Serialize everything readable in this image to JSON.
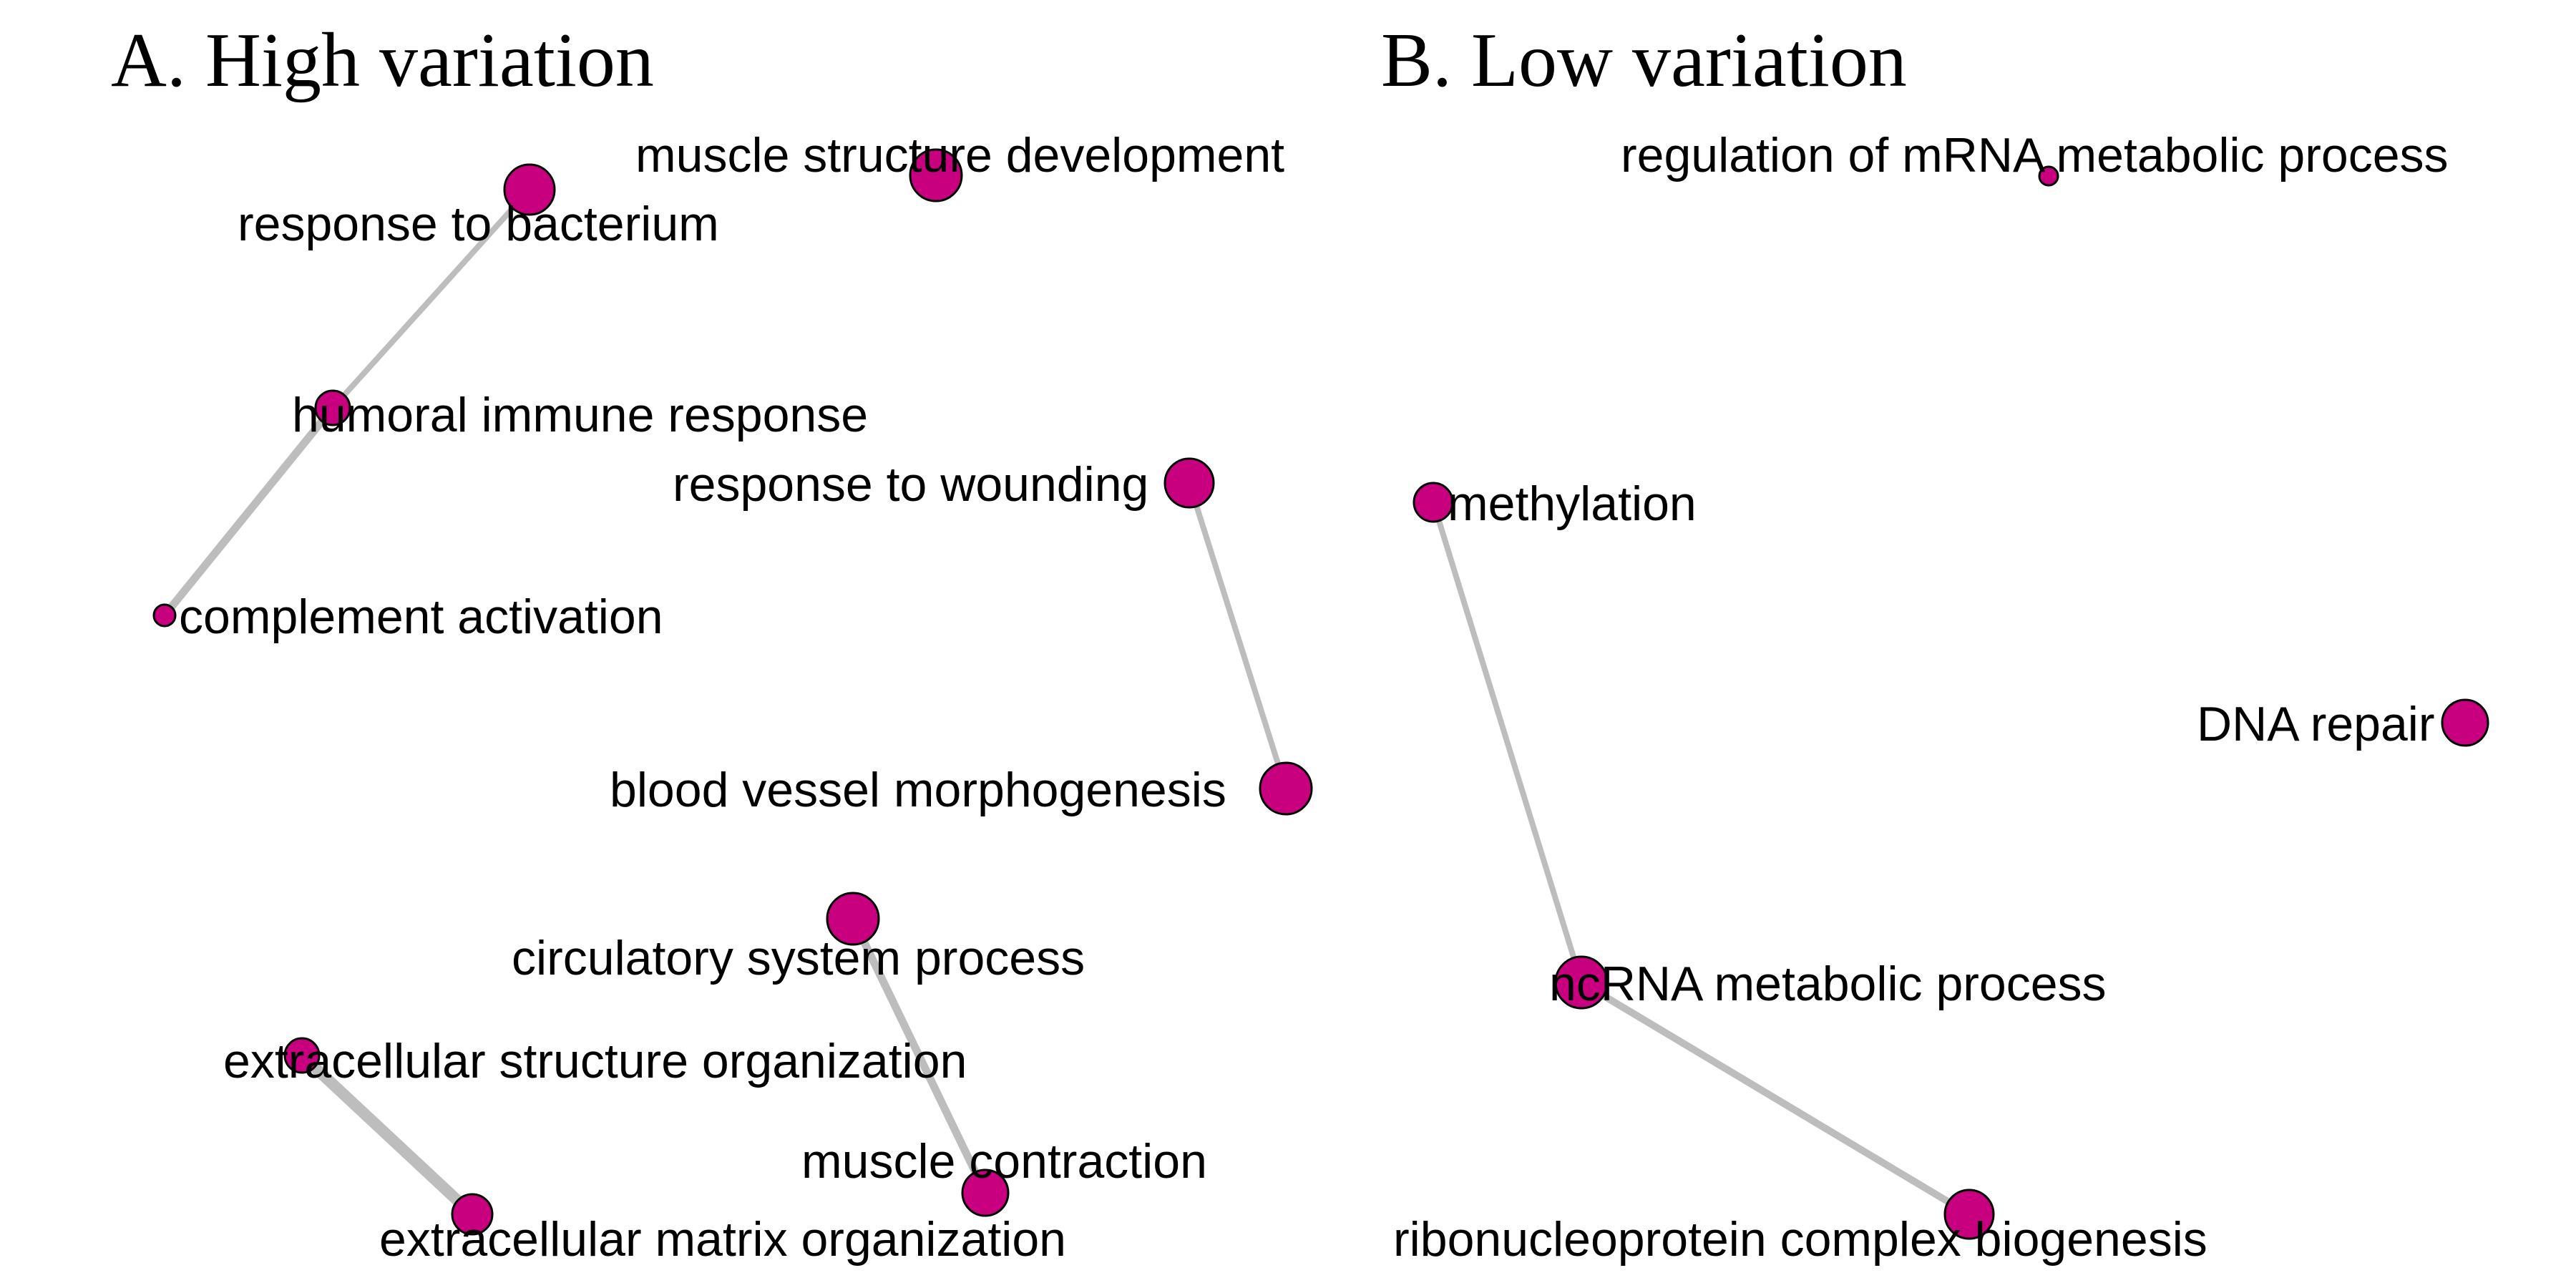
{
  "node_color": "#c8007f",
  "edge_color": "#bdbdbd",
  "panels": [
    {
      "title": "A. High variation",
      "nodes": [
        {
          "id": "muscle-structure-development",
          "label": "muscle structure development"
        },
        {
          "id": "response-to-bacterium",
          "label": "response to bacterium"
        },
        {
          "id": "humoral-immune-response",
          "label": "humoral immune response"
        },
        {
          "id": "response-to-wounding",
          "label": "response to wounding"
        },
        {
          "id": "complement-activation",
          "label": "complement activation"
        },
        {
          "id": "blood-vessel-morphogenesis",
          "label": "blood vessel morphogenesis"
        },
        {
          "id": "circulatory-system-process",
          "label": "circulatory system process"
        },
        {
          "id": "extracellular-structure-organization",
          "label": "extracellular structure organization"
        },
        {
          "id": "muscle-contraction",
          "label": "muscle contraction"
        },
        {
          "id": "extracellular-matrix-organization",
          "label": "extracellular matrix organization"
        }
      ],
      "edges": [
        {
          "from": "response-to-bacterium",
          "to": "humoral-immune-response"
        },
        {
          "from": "humoral-immune-response",
          "to": "complement-activation"
        },
        {
          "from": "response-to-wounding",
          "to": "blood-vessel-morphogenesis"
        },
        {
          "from": "circulatory-system-process",
          "to": "muscle-contraction"
        },
        {
          "from": "extracellular-structure-organization",
          "to": "extracellular-matrix-organization"
        }
      ]
    },
    {
      "title": "B. Low variation",
      "nodes": [
        {
          "id": "regulation-of-mrna-metabolic-process",
          "label": "regulation of mRNA metabolic process"
        },
        {
          "id": "methylation",
          "label": "methylation"
        },
        {
          "id": "dna-repair",
          "label": "DNA repair"
        },
        {
          "id": "ncrna-metabolic-process",
          "label": "ncRNA metabolic process"
        },
        {
          "id": "ribonucleoprotein-complex-biogenesis",
          "label": "ribonucleoprotein complex biogenesis"
        }
      ],
      "edges": [
        {
          "from": "methylation",
          "to": "ncrna-metabolic-process"
        },
        {
          "from": "ncrna-metabolic-process",
          "to": "ribonucleoprotein-complex-biogenesis"
        }
      ]
    }
  ]
}
